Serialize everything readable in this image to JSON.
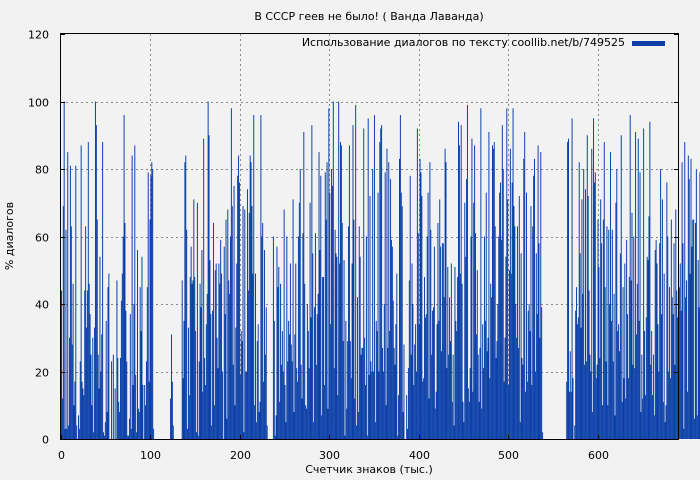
{
  "chart_data": {
    "type": "bar",
    "title": "В СССР геев не было! ( Ванда Лаванда)",
    "xlabel": "Счетчик знаков (тыс.)",
    "ylabel": "% диалогов",
    "xlim": [
      0,
      690
    ],
    "ylim": [
      0,
      120
    ],
    "xticks": [
      0,
      100,
      200,
      300,
      400,
      500,
      600
    ],
    "yticks": [
      0,
      20,
      40,
      60,
      80,
      100,
      120
    ],
    "grid": true,
    "legend_position": "top-right",
    "series": [
      {
        "name": "Использование диалогов по тексту coollib.net/b/749525",
        "color": "#0a3fa8",
        "bar_width": 1,
        "x_start": 0,
        "x_step": 1,
        "values": [
          44,
          12,
          69,
          100,
          3,
          62,
          3,
          85,
          4,
          30,
          81,
          63,
          28,
          46,
          10,
          17,
          81,
          4,
          0,
          7,
          3,
          23,
          87,
          17,
          15,
          13,
          44,
          63,
          33,
          44,
          88,
          46,
          37,
          25,
          10,
          30,
          2,
          33,
          100,
          93,
          65,
          25,
          15,
          54,
          20,
          31,
          88,
          2,
          1,
          5,
          35,
          8,
          45,
          49,
          0,
          0,
          23,
          0,
          25,
          0,
          15,
          0,
          47,
          24,
          11,
          8,
          24,
          41,
          49,
          60,
          96,
          64,
          38,
          23,
          1,
          1,
          6,
          37,
          3,
          84,
          16,
          40,
          87,
          19,
          2,
          56,
          9,
          8,
          45,
          32,
          54,
          16,
          0,
          16,
          10,
          23,
          45,
          79,
          17,
          65,
          78,
          82,
          80,
          3,
          0,
          0,
          0,
          0,
          0,
          0,
          0,
          0,
          0,
          0,
          0,
          0,
          0,
          0,
          0,
          0,
          0,
          0,
          12,
          31,
          17,
          4,
          0,
          0,
          0,
          0,
          0,
          0,
          0,
          0,
          0,
          47,
          18,
          35,
          82,
          84,
          62,
          3,
          33,
          13,
          48,
          57,
          46,
          47,
          71,
          48,
          32,
          2,
          70,
          1,
          23,
          46,
          39,
          56,
          14,
          89,
          24,
          16,
          34,
          43,
          100,
          90,
          53,
          37,
          4,
          38,
          64,
          10,
          50,
          52,
          30,
          21,
          52,
          46,
          59,
          49,
          20,
          0,
          57,
          37,
          65,
          6,
          68,
          47,
          43,
          60,
          98,
          69,
          22,
          75,
          10,
          33,
          52,
          78,
          84,
          76,
          19,
          32,
          29,
          69,
          2,
          68,
          20,
          20,
          74,
          44,
          67,
          84,
          82,
          69,
          49,
          96,
          10,
          49,
          5,
          29,
          34,
          8,
          11,
          96,
          60,
          64,
          17,
          56,
          25,
          39,
          4,
          0,
          0,
          0,
          0,
          0,
          0,
          60,
          35,
          1,
          7,
          57,
          45,
          51,
          11,
          46,
          22,
          32,
          20,
          68,
          16,
          5,
          60,
          23,
          35,
          31,
          52,
          28,
          23,
          71,
          8,
          31,
          52,
          21,
          17,
          60,
          70,
          80,
          22,
          12,
          61,
          91,
          46,
          10,
          9,
          40,
          32,
          21,
          70,
          36,
          93,
          55,
          5,
          39,
          61,
          22,
          37,
          43,
          85,
          56,
          78,
          7,
          48,
          48,
          16,
          79,
          65,
          82,
          9,
          98,
          73,
          34,
          80,
          75,
          100,
          21,
          62,
          55,
          54,
          13,
          100,
          52,
          88,
          87,
          64,
          29,
          53,
          1,
          35,
          9,
          29,
          63,
          87,
          29,
          18,
          52,
          93,
          65,
          12,
          99,
          4,
          42,
          8,
          63,
          54,
          25,
          27,
          27,
          92,
          30,
          16,
          60,
          1,
          95,
          19,
          72,
          23,
          20,
          80,
          20,
          96,
          5,
          35,
          32,
          73,
          20,
          88,
          92,
          93,
          27,
          20,
          40,
          79,
          10,
          86,
          27,
          82,
          32,
          77,
          59,
          57,
          41,
          27,
          22,
          34,
          49,
          1,
          13,
          83,
          96,
          73,
          69,
          8,
          28,
          0,
          0,
          13,
          3,
          21,
          47,
          78,
          25,
          52,
          40,
          16,
          28,
          34,
          20,
          92,
          61,
          34,
          83,
          79,
          72,
          17,
          18,
          48,
          36,
          37,
          60,
          73,
          12,
          82,
          62,
          25,
          38,
          39,
          57,
          9,
          14,
          34,
          64,
          35,
          71,
          57,
          26,
          58,
          58,
          42,
          86,
          82,
          21,
          51,
          25,
          42,
          29,
          52,
          11,
          25,
          4,
          51,
          35,
          32,
          48,
          94,
          87,
          49,
          93,
          46,
          11,
          5,
          70,
          54,
          77,
          99,
          15,
          11,
          21,
          60,
          89,
          14,
          70,
          87,
          61,
          31,
          50,
          25,
          11,
          27,
          98,
          9,
          34,
          21,
          60,
          35,
          73,
          26,
          30,
          91,
          18,
          46,
          42,
          87,
          86,
          88,
          63,
          24,
          29,
          40,
          60,
          73,
          76,
          59,
          93,
          80,
          17,
          30,
          54,
          98,
          71,
          16,
          50,
          86,
          49,
          76,
          98,
          69,
          63,
          40,
          30,
          63,
          27,
          72,
          5,
          55,
          24,
          22,
          83,
          91,
          14,
          73,
          17,
          38,
          40,
          32,
          69,
          16,
          63,
          78,
          83,
          20,
          55,
          37,
          87,
          58,
          30,
          85,
          39,
          2,
          0,
          0,
          0,
          0,
          0,
          0,
          0,
          0,
          0,
          0,
          0,
          0,
          0,
          0,
          0,
          0,
          0,
          0,
          0,
          0,
          0,
          0,
          0,
          0,
          0,
          0,
          17,
          88,
          89,
          14,
          26,
          14,
          95,
          18,
          0,
          4,
          38,
          45,
          34,
          36,
          82,
          55,
          33,
          71,
          43,
          80,
          22,
          74,
          23,
          90,
          72,
          44,
          25,
          20,
          86,
          8,
          95,
          76,
          79,
          18,
          22,
          65,
          51,
          24,
          71,
          58,
          10,
          65,
          88,
          45,
          23,
          63,
          10,
          62,
          40,
          85,
          35,
          62,
          23,
          43,
          7,
          70,
          80,
          32,
          34,
          26,
          55,
          90,
          11,
          45,
          18,
          52,
          12,
          59,
          37,
          18,
          48,
          96,
          47,
          67,
          22,
          60,
          21,
          91,
          31,
          46,
          89,
          35,
          79,
          8,
          25,
          12,
          92,
          32,
          13,
          36,
          54,
          53,
          66,
          94,
          22,
          32,
          13,
          25,
          7,
          56,
          59,
          52,
          34,
          20,
          58,
          80,
          37,
          71,
          11,
          49,
          5,
          10,
          76,
          60,
          20,
          45,
          18,
          65,
          42,
          37,
          58,
          22,
          68,
          44,
          36,
          64,
          45,
          52,
          38,
          82,
          58,
          3,
          88,
          42,
          47,
          14,
          84,
          77,
          49,
          83,
          57,
          65,
          65,
          6,
          64,
          80,
          7,
          53,
          39,
          79,
          71,
          16,
          74,
          74,
          72,
          9,
          17,
          55,
          74,
          25,
          5,
          82,
          53,
          10,
          77,
          44,
          86,
          20,
          44,
          37,
          88,
          29,
          83,
          3,
          70,
          54,
          38,
          68,
          10,
          43,
          26,
          17,
          85,
          3,
          57,
          20,
          37,
          89,
          4,
          27,
          16,
          25,
          24,
          37,
          83,
          5,
          67,
          29,
          97,
          54,
          4,
          44,
          85,
          60,
          58,
          17,
          23,
          50,
          39,
          13
        ]
      }
    ]
  }
}
